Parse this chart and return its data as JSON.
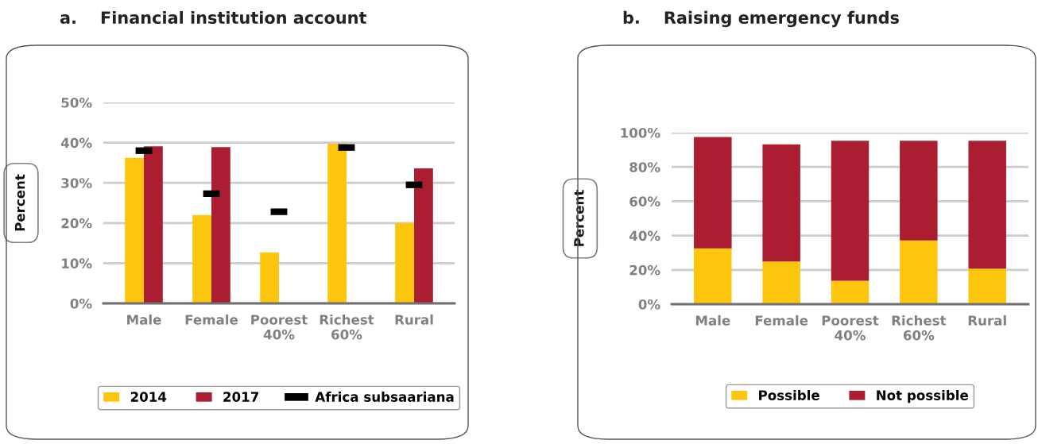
{
  "chart_data": [
    {
      "type": "bar",
      "title": "a.    Financial institution account",
      "ylabel": "Percent",
      "categories": [
        "Male",
        "Female",
        "Poorest\n40%",
        "Richest\n60%",
        "Rural"
      ],
      "series": [
        {
          "name": "2014",
          "color": "#fcc60e",
          "values": [
            36.2,
            22.0,
            12.7,
            39.7,
            20.0
          ]
        },
        {
          "name": "2017",
          "color": "#ab1e31",
          "values": [
            39.1,
            38.9,
            null,
            null,
            33.6
          ]
        },
        {
          "name": "Africa subsaariana",
          "type": "scatter",
          "color": "#000000",
          "values": [
            38.0,
            27.3,
            22.8,
            38.8,
            29.5
          ]
        }
      ],
      "ylim": [
        0,
        50
      ],
      "yticks": [
        {
          "value": 0,
          "label": "0%"
        },
        {
          "value": 10,
          "label": "10%"
        },
        {
          "value": 20,
          "label": "20%"
        },
        {
          "value": 30,
          "label": "30%"
        },
        {
          "value": 40,
          "label": "40%"
        },
        {
          "value": 50,
          "label": "50%"
        }
      ],
      "grid": "y",
      "legend": "bottom"
    },
    {
      "type": "bar",
      "title": "b.    Raising emergency funds",
      "ylabel": "Percent",
      "stacked": true,
      "categories": [
        "Male",
        "Female",
        "Poorest\n40%",
        "Richest\n60%",
        "Rural"
      ],
      "series": [
        {
          "name": "Possible",
          "color": "#fcc60e",
          "values": [
            32.5,
            24.9,
            13.7,
            37.2,
            20.7
          ]
        },
        {
          "name": "Not possible",
          "color": "#ab1e31",
          "values": [
            65.0,
            68.3,
            81.5,
            58.0,
            74.5
          ]
        }
      ],
      "ylim": [
        0,
        100
      ],
      "yticks": [
        {
          "value": 0,
          "label": "0%"
        },
        {
          "value": 20,
          "label": "20%"
        },
        {
          "value": 40,
          "label": "40%"
        },
        {
          "value": 60,
          "label": "60%"
        },
        {
          "value": 80,
          "label": "80%"
        },
        {
          "value": 100,
          "label": "100%"
        }
      ],
      "grid": "y",
      "legend": "bottom"
    }
  ]
}
